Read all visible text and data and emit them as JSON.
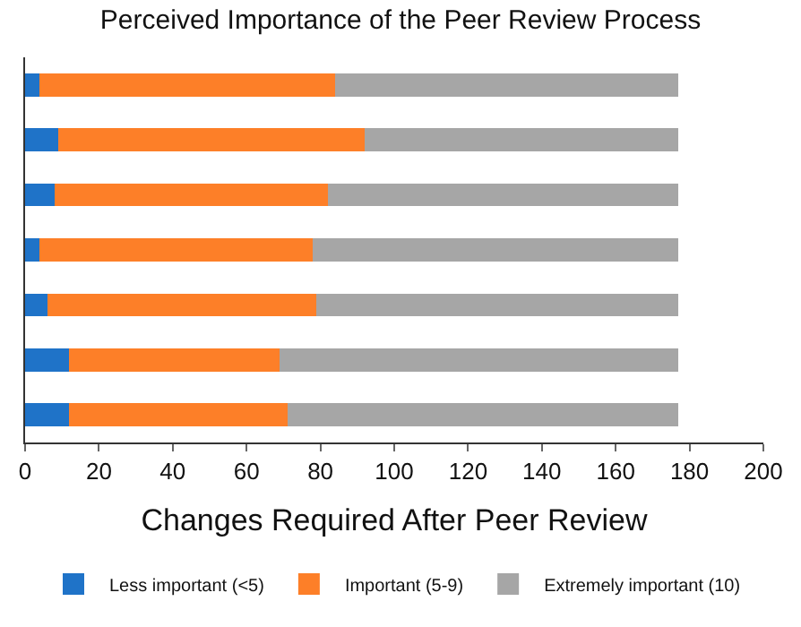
{
  "chart_data": {
    "type": "bar",
    "orientation": "horizontal",
    "stacked": true,
    "title": "Perceived Importance of the Peer Review Process",
    "xlabel": "Changes Required After Peer Review",
    "categories": [
      null,
      null,
      null,
      null,
      null,
      null,
      null
    ],
    "series": [
      {
        "name": "Less important (<5)",
        "color": "#1f73c8",
        "values": [
          4,
          9,
          8,
          4,
          6,
          12,
          12
        ]
      },
      {
        "name": "Important (5-9)",
        "color": "#fd7f28",
        "values": [
          80,
          83,
          74,
          74,
          73,
          57,
          59
        ]
      },
      {
        "name": "Extremely important (10)",
        "color": "#a6a6a6",
        "values": [
          93,
          85,
          95,
          99,
          98,
          108,
          106
        ]
      }
    ],
    "xlim": [
      0,
      200
    ],
    "xticks": [
      0,
      20,
      40,
      60,
      80,
      100,
      120,
      140,
      160,
      180,
      200
    ],
    "legend": "bottom"
  }
}
